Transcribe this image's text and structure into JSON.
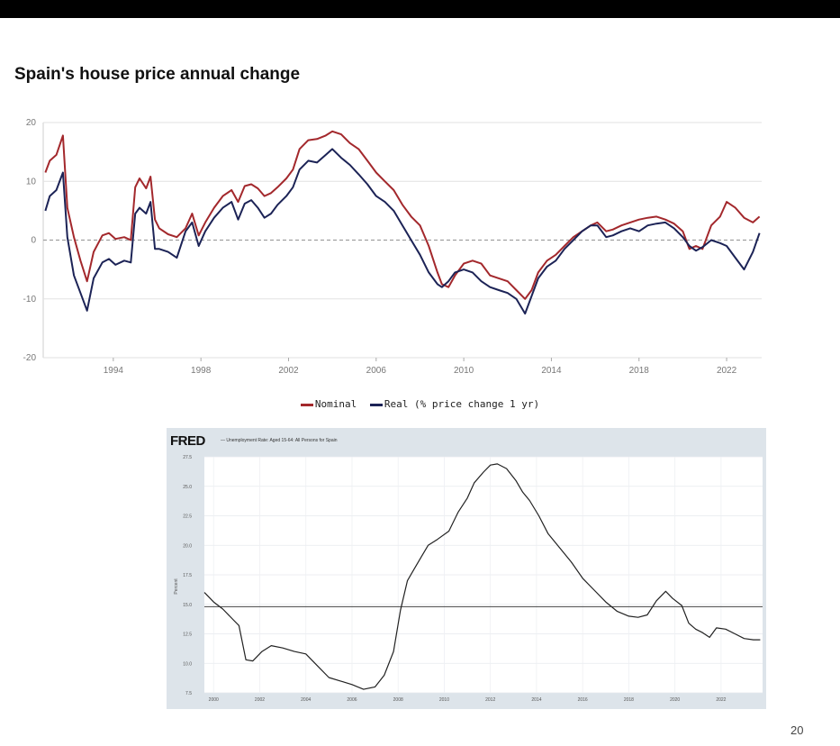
{
  "slide": {
    "page_number": "20"
  },
  "chart_data": [
    {
      "type": "line",
      "title": "Spain's house price annual change",
      "xlabel": "",
      "ylabel": "",
      "ylim": [
        -20,
        20
      ],
      "xlim": [
        1990.8,
        2023.6
      ],
      "yticks": [
        20,
        10,
        0,
        -10,
        -20
      ],
      "xticks": [
        1994,
        1998,
        2002,
        2006,
        2010,
        2014,
        2018,
        2022
      ],
      "grid": true,
      "zero_line": "dashed",
      "legend_position": "bottom",
      "legend_text": [
        "Nominal",
        "Real (% price change 1 yr)"
      ],
      "series": [
        {
          "name": "Nominal",
          "color": "#a3282c",
          "x": [
            1990.9,
            1991.1,
            1991.4,
            1991.7,
            1991.9,
            1992.2,
            1992.5,
            1992.8,
            1993.1,
            1993.5,
            1993.8,
            1994.1,
            1994.5,
            1994.8,
            1995.0,
            1995.2,
            1995.5,
            1995.7,
            1995.9,
            1996.1,
            1996.5,
            1996.9,
            1997.3,
            1997.6,
            1997.9,
            1998.2,
            1998.6,
            1999.0,
            1999.4,
            1999.7,
            2000.0,
            2000.3,
            2000.6,
            2000.9,
            2001.2,
            2001.5,
            2001.9,
            2002.2,
            2002.5,
            2002.9,
            2003.3,
            2003.7,
            2004.0,
            2004.4,
            2004.8,
            2005.2,
            2005.6,
            2006.0,
            2006.4,
            2006.8,
            2007.2,
            2007.6,
            2008.0,
            2008.4,
            2008.8,
            2009.0,
            2009.3,
            2009.6,
            2010.0,
            2010.4,
            2010.8,
            2011.2,
            2011.6,
            2012.0,
            2012.4,
            2012.8,
            2013.1,
            2013.4,
            2013.8,
            2014.2,
            2014.6,
            2015.0,
            2015.4,
            2015.8,
            2016.1,
            2016.5,
            2016.8,
            2017.2,
            2017.6,
            2018.0,
            2018.4,
            2018.8,
            2019.2,
            2019.6,
            2020.0,
            2020.3,
            2020.6,
            2020.9,
            2021.3,
            2021.7,
            2022.0,
            2022.4,
            2022.8,
            2023.2,
            2023.5
          ],
          "values": [
            11.5,
            13.5,
            14.5,
            17.8,
            5.5,
            0.5,
            -3.5,
            -7.0,
            -2.0,
            0.8,
            1.2,
            0.2,
            0.5,
            0.0,
            9.0,
            10.5,
            8.8,
            10.8,
            3.5,
            2.0,
            1.0,
            0.5,
            2.0,
            4.5,
            0.8,
            3.0,
            5.5,
            7.5,
            8.5,
            6.5,
            9.2,
            9.5,
            8.8,
            7.5,
            8.0,
            9.0,
            10.5,
            12.0,
            15.5,
            17.0,
            17.2,
            17.8,
            18.5,
            18.0,
            16.5,
            15.5,
            13.5,
            11.5,
            10.0,
            8.5,
            6.0,
            4.0,
            2.5,
            -1.0,
            -5.5,
            -7.5,
            -8.0,
            -6.0,
            -4.0,
            -3.5,
            -4.0,
            -6.0,
            -6.5,
            -7.0,
            -8.5,
            -10.0,
            -8.5,
            -5.5,
            -3.5,
            -2.5,
            -1.0,
            0.5,
            1.5,
            2.5,
            3.0,
            1.5,
            1.8,
            2.5,
            3.0,
            3.5,
            3.8,
            4.0,
            3.5,
            2.8,
            1.5,
            -1.5,
            -1.0,
            -1.5,
            2.5,
            4.0,
            6.5,
            5.5,
            3.8,
            3.0,
            4.0
          ]
        },
        {
          "name": "Real (% price change 1 yr)",
          "color": "#1c2356",
          "x": [
            1990.9,
            1991.1,
            1991.4,
            1991.7,
            1991.9,
            1992.2,
            1992.5,
            1992.8,
            1993.1,
            1993.5,
            1993.8,
            1994.1,
            1994.5,
            1994.8,
            1995.0,
            1995.2,
            1995.5,
            1995.7,
            1995.9,
            1996.1,
            1996.5,
            1996.9,
            1997.3,
            1997.6,
            1997.9,
            1998.2,
            1998.6,
            1999.0,
            1999.4,
            1999.7,
            2000.0,
            2000.3,
            2000.6,
            2000.9,
            2001.2,
            2001.5,
            2001.9,
            2002.2,
            2002.5,
            2002.9,
            2003.3,
            2003.7,
            2004.0,
            2004.4,
            2004.8,
            2005.2,
            2005.6,
            2006.0,
            2006.4,
            2006.8,
            2007.2,
            2007.6,
            2008.0,
            2008.4,
            2008.8,
            2009.0,
            2009.3,
            2009.6,
            2010.0,
            2010.4,
            2010.8,
            2011.2,
            2011.6,
            2012.0,
            2012.4,
            2012.8,
            2013.1,
            2013.4,
            2013.8,
            2014.2,
            2014.6,
            2015.0,
            2015.4,
            2015.8,
            2016.1,
            2016.5,
            2016.8,
            2017.2,
            2017.6,
            2018.0,
            2018.4,
            2018.8,
            2019.2,
            2019.6,
            2020.0,
            2020.3,
            2020.6,
            2020.9,
            2021.3,
            2021.7,
            2022.0,
            2022.4,
            2022.8,
            2023.2,
            2023.5
          ],
          "values": [
            5.0,
            7.5,
            8.5,
            11.5,
            0.5,
            -6.0,
            -9.0,
            -12.0,
            -6.5,
            -3.8,
            -3.2,
            -4.2,
            -3.5,
            -3.8,
            4.5,
            5.5,
            4.5,
            6.5,
            -1.5,
            -1.5,
            -2.0,
            -3.0,
            1.5,
            3.0,
            -1.0,
            1.5,
            3.8,
            5.5,
            6.5,
            3.5,
            6.2,
            6.8,
            5.5,
            3.8,
            4.5,
            6.0,
            7.5,
            9.0,
            12.0,
            13.5,
            13.2,
            14.5,
            15.5,
            14.0,
            12.8,
            11.2,
            9.5,
            7.5,
            6.5,
            5.0,
            2.5,
            0.0,
            -2.5,
            -5.5,
            -7.5,
            -8.0,
            -7.0,
            -5.5,
            -5.0,
            -5.5,
            -7.0,
            -8.0,
            -8.5,
            -9.0,
            -10.0,
            -12.5,
            -9.5,
            -6.5,
            -4.5,
            -3.5,
            -1.5,
            0.0,
            1.5,
            2.5,
            2.5,
            0.5,
            0.8,
            1.5,
            2.0,
            1.5,
            2.5,
            2.8,
            3.0,
            2.0,
            0.5,
            -1.0,
            -1.8,
            -1.2,
            0.0,
            -0.5,
            -1.0,
            -3.0,
            -5.0,
            -2.0,
            1.2
          ]
        }
      ]
    },
    {
      "type": "line",
      "source": "FRED",
      "series_title": "— Unemployment Rate: Aged 15-64: All Persons for Spain",
      "ylabel": "Percent",
      "ylim": [
        7.5,
        27.5
      ],
      "xlim": [
        1999.6,
        2023.8
      ],
      "yticks": [
        27.5,
        25.0,
        22.5,
        20.0,
        17.5,
        15.0,
        12.5,
        10.0,
        7.5
      ],
      "xticks": [
        2000,
        2002,
        2004,
        2006,
        2008,
        2010,
        2012,
        2014,
        2016,
        2018,
        2020,
        2022
      ],
      "ytick_labels": [
        "27.5",
        "25.0",
        "22.5",
        "20.0",
        "17.5",
        "15.0",
        "12.5",
        "10.0",
        "7.5"
      ],
      "xtick_labels": [
        "2000",
        "2002",
        "2004",
        "2006",
        "2008",
        "2010",
        "2012",
        "2014",
        "2016",
        "2018",
        "2020",
        "2022"
      ],
      "reference_line": 14.8,
      "grid": true,
      "series": [
        {
          "color": "#222222",
          "x": [
            1999.6,
            2000.0,
            2000.4,
            2000.8,
            2001.1,
            2001.4,
            2001.7,
            2002.1,
            2002.5,
            2003.0,
            2003.5,
            2004.0,
            2004.5,
            2005.0,
            2005.5,
            2006.0,
            2006.5,
            2007.0,
            2007.4,
            2007.8,
            2008.1,
            2008.4,
            2008.7,
            2009.0,
            2009.3,
            2009.7,
            2010.2,
            2010.6,
            2011.0,
            2011.3,
            2011.7,
            2012.0,
            2012.3,
            2012.7,
            2013.1,
            2013.4,
            2013.7,
            2014.1,
            2014.5,
            2015.0,
            2015.5,
            2016.0,
            2016.5,
            2017.0,
            2017.5,
            2018.0,
            2018.4,
            2018.8,
            2019.2,
            2019.6,
            2019.9,
            2020.3,
            2020.6,
            2020.9,
            2021.2,
            2021.5,
            2021.8,
            2022.2,
            2022.6,
            2023.0,
            2023.4,
            2023.7
          ],
          "values": [
            16.0,
            15.2,
            14.6,
            13.8,
            13.2,
            10.3,
            10.2,
            11.0,
            11.5,
            11.3,
            11.0,
            10.8,
            9.8,
            8.8,
            8.5,
            8.2,
            7.8,
            8.0,
            9.0,
            11.0,
            14.5,
            17.0,
            18.0,
            19.0,
            20.0,
            20.5,
            21.2,
            22.8,
            24.0,
            25.3,
            26.2,
            26.8,
            26.9,
            26.5,
            25.5,
            24.5,
            23.8,
            22.5,
            21.0,
            19.8,
            18.6,
            17.2,
            16.2,
            15.2,
            14.4,
            14.0,
            13.9,
            14.1,
            15.3,
            16.1,
            15.5,
            14.9,
            13.4,
            12.9,
            12.6,
            12.2,
            13.0,
            12.9,
            12.5,
            12.1,
            12.0,
            12.0
          ]
        }
      ]
    }
  ]
}
